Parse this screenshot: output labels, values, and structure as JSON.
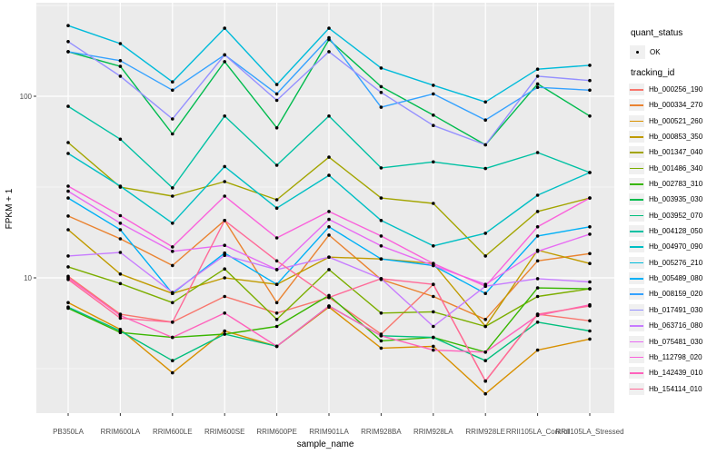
{
  "figure": {
    "bg": "#FFFFFF",
    "panel_bg": "#EBEBEB",
    "grid_color": "#FFFFFF",
    "axis_text_color": "#4D4D4D",
    "tick_color": "#333333"
  },
  "chart_data": {
    "type": "line",
    "title": "",
    "xlabel": "sample_name",
    "ylabel": "FPKM + 1",
    "y_scale": "log10",
    "y_major_ticks": [
      10,
      100
    ],
    "y_minor_gridlines": [
      3.162,
      31.62,
      316.2
    ],
    "ylim": [
      1.7,
      330
    ],
    "grid": true,
    "legend_position": "right",
    "marker": {
      "shape": "point",
      "color": "#000000"
    },
    "categories": [
      "PB350LA",
      "RRIM600LA",
      "RRIM600LE",
      "RRIM600SE",
      "RRIM600PE",
      "RRIM901LA",
      "RRIM928BA",
      "RRIM928LA",
      "RRIM928LE",
      "RRII105LA_Control",
      "RRII105LA_Stressed"
    ],
    "series": [
      {
        "name": "Hb_000256_190",
        "color": "#F8766D",
        "values": [
          10.2,
          6.3,
          5.7,
          7.9,
          6.4,
          7.8,
          4.9,
          9.2,
          2.7,
          6.3,
          5.8
        ]
      },
      {
        "name": "Hb_000334_270",
        "color": "#EA8331",
        "values": [
          21.9,
          16.4,
          11.7,
          20.7,
          7.3,
          17.2,
          9.8,
          7.9,
          5.9,
          12.4,
          13.6
        ]
      },
      {
        "name": "Hb_000521_260",
        "color": "#D89000",
        "values": [
          7.3,
          5.2,
          3.0,
          5.1,
          4.2,
          6.9,
          4.1,
          4.2,
          2.3,
          4.0,
          4.6
        ]
      },
      {
        "name": "Hb_000853_350",
        "color": "#C09B00",
        "values": [
          18.4,
          10.5,
          8.2,
          10.0,
          9.2,
          13.0,
          12.7,
          12.0,
          5.4,
          14.2,
          12.0
        ]
      },
      {
        "name": "Hb_001347_040",
        "color": "#A3A500",
        "values": [
          55.6,
          31.6,
          28.2,
          33.9,
          26.9,
          46.2,
          27.5,
          25.7,
          13.2,
          23.2,
          27.5
        ]
      },
      {
        "name": "Hb_001486_340",
        "color": "#7CAE00",
        "values": [
          11.5,
          9.3,
          7.3,
          11.2,
          5.9,
          11.1,
          6.4,
          6.5,
          5.4,
          7.9,
          8.7
        ]
      },
      {
        "name": "Hb_002783_310",
        "color": "#39B600",
        "values": [
          6.8,
          5.0,
          4.7,
          4.9,
          5.4,
          8.0,
          4.5,
          4.7,
          3.9,
          8.8,
          8.7
        ]
      },
      {
        "name": "Hb_003935_030",
        "color": "#00BB4E",
        "values": [
          176,
          146,
          62,
          155,
          67,
          205,
          113,
          78.7,
          54,
          117,
          77.8
        ]
      },
      {
        "name": "Hb_003952_070",
        "color": "#00BF7D",
        "values": [
          6.9,
          5.1,
          3.5,
          4.9,
          4.2,
          7.0,
          4.8,
          4.7,
          3.5,
          5.7,
          5.1
        ]
      },
      {
        "name": "Hb_004128_050",
        "color": "#00C1A3",
        "values": [
          88,
          58,
          31.3,
          77.8,
          41.7,
          77.8,
          40.3,
          43.5,
          40,
          49,
          38
        ]
      },
      {
        "name": "Hb_004970_090",
        "color": "#00BFC4",
        "values": [
          48.4,
          32,
          20,
          41,
          24.2,
          36.7,
          20.7,
          15,
          17.6,
          28.5,
          38
        ]
      },
      {
        "name": "Hb_005276_210",
        "color": "#00BBDA",
        "values": [
          245,
          195,
          120,
          237,
          116,
          237,
          143,
          115,
          93,
          141,
          148
        ]
      },
      {
        "name": "Hb_005489_080",
        "color": "#00B0F6",
        "values": [
          27.5,
          18.4,
          8.2,
          13.7,
          9.2,
          19.1,
          12.7,
          11.7,
          8.2,
          17,
          19.1
        ]
      },
      {
        "name": "Hb_008159_020",
        "color": "#35A2FF",
        "values": [
          176,
          157,
          108,
          169,
          103,
          210,
          87,
          103,
          74,
          112,
          108
        ]
      },
      {
        "name": "Hb_017491_030",
        "color": "#9590FF",
        "values": [
          200,
          129,
          75,
          169,
          95,
          176,
          105,
          69,
          54,
          129,
          122
        ]
      },
      {
        "name": "Hb_063716_080",
        "color": "#C77CFF",
        "values": [
          13.2,
          13.8,
          8.3,
          13.3,
          11.1,
          13.0,
          9.9,
          5.4,
          9.0,
          9.9,
          9.5
        ]
      },
      {
        "name": "Hb_075481_030",
        "color": "#E76BF3",
        "values": [
          30,
          20,
          14,
          15.1,
          11.1,
          21,
          15,
          11.7,
          9.2,
          14,
          17.4
        ]
      },
      {
        "name": "Hb_112798_020",
        "color": "#FA62DB",
        "values": [
          32,
          22,
          14.8,
          28.2,
          16.6,
          23.2,
          17,
          12,
          9.0,
          19.1,
          27.5
        ]
      },
      {
        "name": "Hb_142439_010",
        "color": "#FF62BC",
        "values": [
          10,
          6.2,
          4.7,
          6.4,
          4.2,
          7.0,
          4.8,
          4.0,
          3.9,
          6.2,
          7.1
        ]
      },
      {
        "name": "Hb_154114_010",
        "color": "#FF6A98",
        "values": [
          9.8,
          6.0,
          5.7,
          20.7,
          12.4,
          7.8,
          9.9,
          9.2,
          2.7,
          6.3,
          7.0
        ]
      }
    ]
  },
  "legends": {
    "quant_status": {
      "title": "quant_status",
      "items": [
        {
          "label": "OK",
          "marker": "point"
        }
      ]
    },
    "tracking_id": {
      "title": "tracking_id"
    }
  }
}
